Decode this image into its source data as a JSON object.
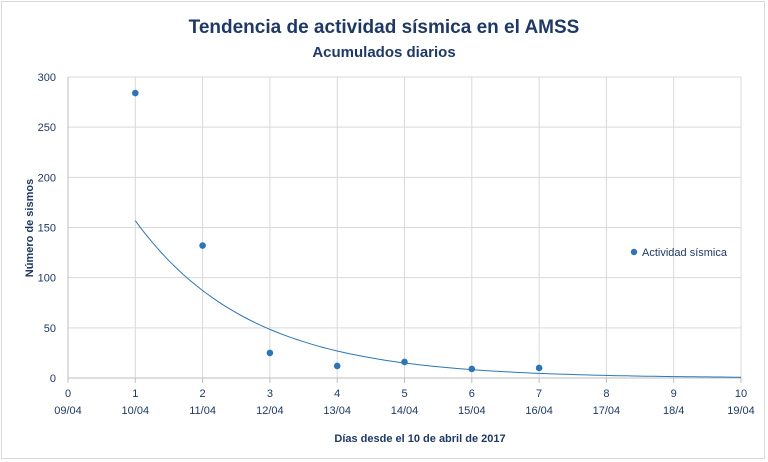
{
  "chart_data": {
    "type": "scatter",
    "title": "Tendencia de actividad sísmica en el AMSS",
    "subtitle": "Acumulados diarios",
    "xlabel": "Días desde el 10 de abril de 2017",
    "ylabel": "Número de sismos",
    "xlim": [
      0,
      10
    ],
    "ylim": [
      0,
      300
    ],
    "x_ticks": [
      "0",
      "1",
      "2",
      "3",
      "4",
      "5",
      "6",
      "7",
      "8",
      "9",
      "10"
    ],
    "x_dates": [
      "09/04",
      "10/04",
      "11/04",
      "12/04",
      "13/04",
      "14/04",
      "15/04",
      "16/04",
      "17/04",
      "18/4",
      "19/04"
    ],
    "y_ticks": [
      "0",
      "50",
      "100",
      "150",
      "200",
      "250",
      "300"
    ],
    "grid": true,
    "legend": "right",
    "series": [
      {
        "name": "Actividad sísmica",
        "color": "#2e75b6",
        "x": [
          1,
          2,
          3,
          4,
          5,
          6,
          7
        ],
        "y": [
          284,
          132,
          25,
          12,
          16,
          9,
          10
        ]
      }
    ],
    "trendline": {
      "type": "exponential",
      "color": "#2e75b6",
      "x_range": [
        1,
        10
      ],
      "a": 282,
      "b": -0.587
    }
  }
}
